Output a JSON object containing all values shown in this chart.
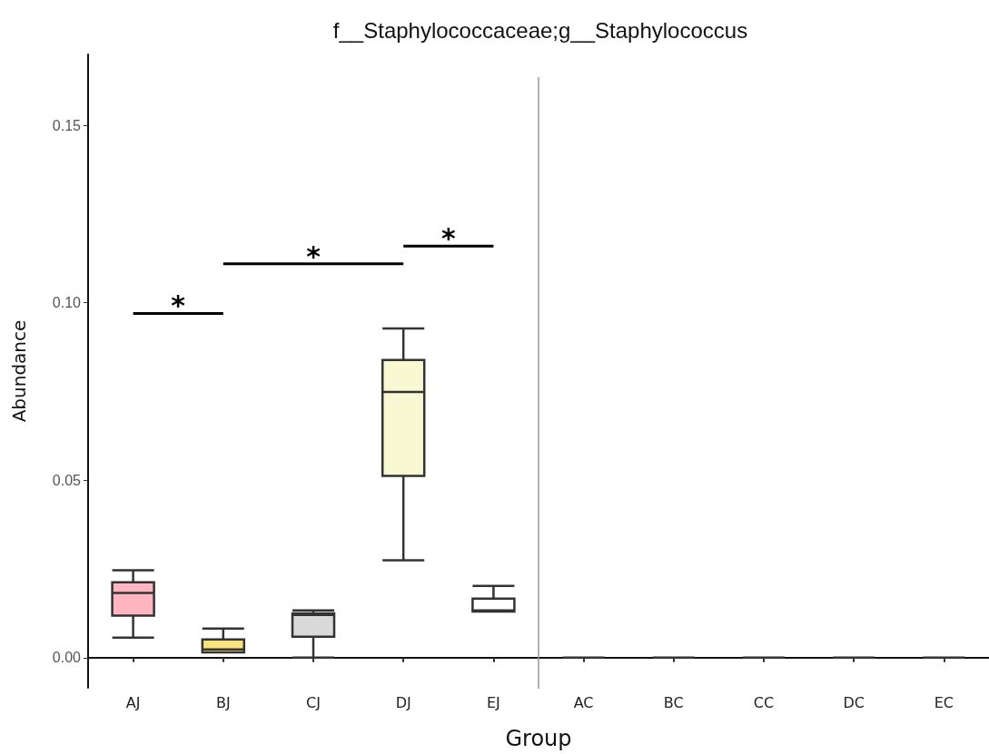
{
  "chart_data": {
    "type": "box",
    "title": "f__Staphylococcaceae;g__Staphylococcus",
    "xlabel": "Group",
    "ylabel": "Abundance",
    "categories": [
      "AJ",
      "BJ",
      "CJ",
      "DJ",
      "EJ",
      "AC",
      "BC",
      "CC",
      "DC",
      "EC"
    ],
    "colors": [
      "#ffb6c1",
      "#f7e27e",
      "#d9d9d9",
      "#f8f8d2",
      "#ffffff",
      "#333333",
      "#333333",
      "#333333",
      "#333333",
      "#333333"
    ],
    "boxes": [
      {
        "low": 0.0056,
        "q1": 0.0118,
        "median": 0.0182,
        "q3": 0.0212,
        "high": 0.0246
      },
      {
        "low": 0.0015,
        "q1": 0.0015,
        "median": 0.0023,
        "q3": 0.0051,
        "high": 0.0082
      },
      {
        "low": 0.0,
        "q1": 0.0059,
        "median": 0.012,
        "q3": 0.0125,
        "high": 0.0133
      },
      {
        "low": 0.0274,
        "q1": 0.0512,
        "median": 0.0749,
        "q3": 0.0839,
        "high": 0.0928
      },
      {
        "low": 0.013,
        "q1": 0.013,
        "median": 0.0133,
        "q3": 0.0166,
        "high": 0.0202
      },
      {
        "low": 0,
        "q1": 0,
        "median": 0,
        "q3": 0,
        "high": 0
      },
      {
        "low": 0,
        "q1": 0,
        "median": 0,
        "q3": 0,
        "high": 0
      },
      {
        "low": 0,
        "q1": 0,
        "median": 0,
        "q3": 0,
        "high": 0
      },
      {
        "low": 0,
        "q1": 0,
        "median": 0,
        "q3": 0,
        "high": 0
      },
      {
        "low": 0,
        "q1": 0,
        "median": 0,
        "q3": 0,
        "high": 0
      }
    ],
    "ylim": [
      -0.0085,
      0.17
    ],
    "yticks": [
      {
        "value": 0,
        "label": "0.00"
      },
      {
        "value": 0.05,
        "label": "0.05"
      },
      {
        "value": 0.1,
        "label": "0.10"
      },
      {
        "value": 0.15,
        "label": "0.15"
      }
    ],
    "annotations": [
      "*",
      "*",
      "*"
    ],
    "grid": false
  }
}
